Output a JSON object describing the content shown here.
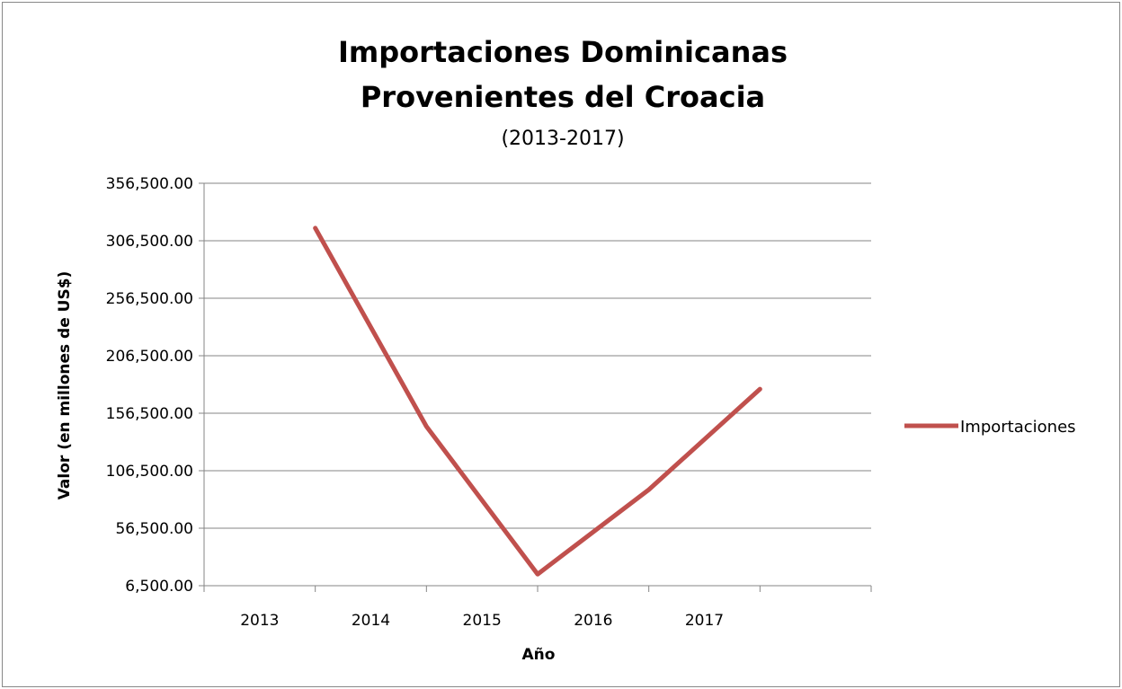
{
  "chart_data": {
    "type": "line",
    "title": [
      "Importaciones Dominicanas",
      "Provenientes del Croacia"
    ],
    "subtitle": "(2013-2017)",
    "xlabel": "Año",
    "ylabel": "Valor (en millones de US$)",
    "categories": [
      "2013",
      "2014",
      "2015",
      "2016",
      "2017"
    ],
    "yticks": [
      "356,500.00",
      "306,500.00",
      "256,500.00",
      "206,500.00",
      "156,500.00",
      "106,500.00",
      "56,500.00",
      "6,500.00"
    ],
    "ylim": [
      6500,
      356500
    ],
    "grid": true,
    "legend_position": "right",
    "series": [
      {
        "name": "Importaciones",
        "color": "#c0504d",
        "values": [
          317500,
          145000,
          16500,
          90000,
          177500
        ]
      }
    ]
  }
}
